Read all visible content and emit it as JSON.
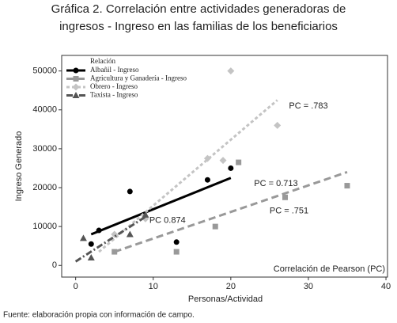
{
  "chart_data": {
    "type": "scatter",
    "title_lines": [
      "Gráfica 2. Correlación entre actividades generadoras de",
      "ingresos - Ingreso en las familias de los beneficiarios"
    ],
    "x_label": "Personas/Actividad",
    "y_label": "Ingreso Generado",
    "xlim": [
      -1.8,
      40.2
    ],
    "ylim": [
      -3000,
      54000
    ],
    "xticks": [
      0,
      10,
      20,
      30,
      40
    ],
    "yticks": [
      0,
      10000,
      20000,
      30000,
      40000,
      50000
    ],
    "legend_title": "Relación",
    "legend_position": "upper left",
    "series": [
      {
        "name": "Albañil - Ingreso",
        "color": "#000000",
        "marker": "circle",
        "line_style": "solid",
        "x": [
          2,
          3,
          7,
          13,
          17,
          20
        ],
        "values": [
          5500,
          9000,
          19000,
          6000,
          22000,
          25000
        ],
        "fit_x": [
          2,
          20
        ],
        "fit_y": [
          8000,
          22500
        ]
      },
      {
        "name": "Agricultura y Ganadería - Ingreso",
        "color": "#999999",
        "marker": "square",
        "line_style": "dashed",
        "x": [
          5,
          13,
          18,
          21,
          27,
          35
        ],
        "values": [
          3500,
          3500,
          10000,
          26500,
          17500,
          20500
        ],
        "fit_x": [
          5,
          35
        ],
        "fit_y": [
          3500,
          24000
        ]
      },
      {
        "name": "Obrero - Ingreso",
        "color": "#c4c4c4",
        "marker": "diamond",
        "line_style": "dotted",
        "x": [
          5,
          9,
          17,
          19,
          20,
          26
        ],
        "values": [
          8000,
          12000,
          27500,
          27000,
          50000,
          36000
        ],
        "fit_x": [
          3,
          26
        ],
        "fit_y": [
          3500,
          42500
        ]
      },
      {
        "name": "Taxista - Ingreso",
        "color": "#555555",
        "marker": "triangle",
        "line_style": "dashdot",
        "x": [
          1,
          2,
          7,
          9
        ],
        "values": [
          7000,
          2000,
          8000,
          13000
        ],
        "fit_x": [
          0,
          9
        ],
        "fit_y": [
          1000,
          12500
        ]
      }
    ],
    "annotations": [
      {
        "text": "PC = .783",
        "x": 27.5,
        "y": 41000
      },
      {
        "text": "PC =  0.713",
        "x": 23,
        "y": 21000
      },
      {
        "text": "PC =  .751",
        "x": 25,
        "y": 14000
      },
      {
        "text": "PC    0.874",
        "x": 9.5,
        "y": 11500
      },
      {
        "text": "Correlación de Pearson (PC)",
        "x": 25.5,
        "y": -1000
      }
    ],
    "source": "Fuente: elaboración propia con información de campo."
  }
}
